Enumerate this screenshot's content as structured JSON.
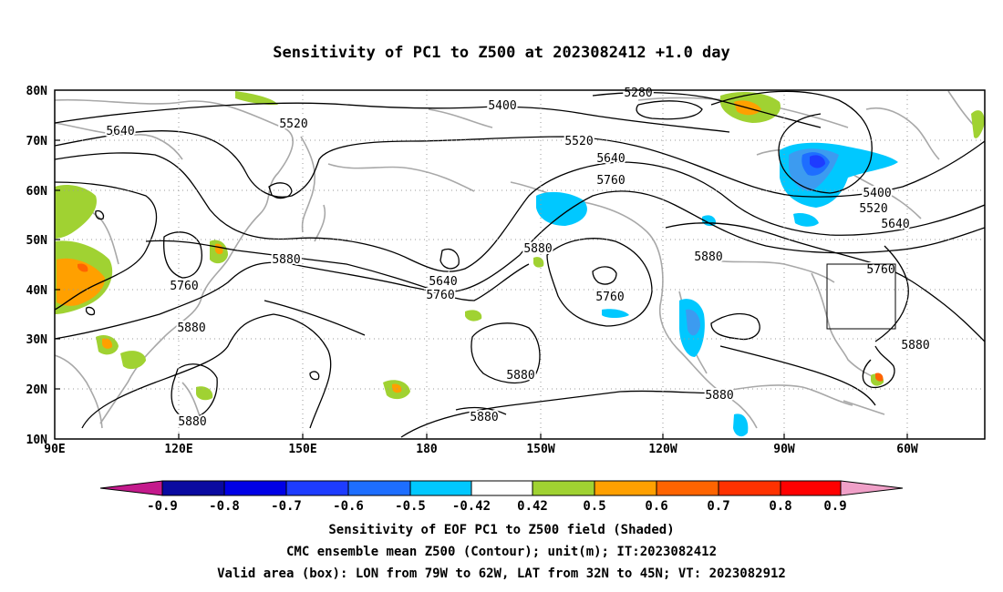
{
  "title": "Sensitivity of PC1 to Z500 at 2023082412 +1.0 day",
  "map": {
    "lat_labels": [
      "80N",
      "70N",
      "60N",
      "50N",
      "40N",
      "30N",
      "20N",
      "10N"
    ],
    "lon_labels": [
      "90E",
      "120E",
      "150E",
      "180",
      "150W",
      "120W",
      "90W",
      "60W"
    ],
    "contour_labels": [
      {
        "text": "5280",
        "id": "c5280"
      },
      {
        "text": "5400",
        "id": "c5400a"
      },
      {
        "text": "5520",
        "id": "c5520a"
      },
      {
        "text": "5640",
        "id": "c5640a"
      },
      {
        "text": "5520",
        "id": "c5520b"
      },
      {
        "text": "5640",
        "id": "c5640b"
      },
      {
        "text": "5760",
        "id": "c5760a"
      },
      {
        "text": "5400",
        "id": "c5400b"
      },
      {
        "text": "5520",
        "id": "c5520c"
      },
      {
        "text": "5640",
        "id": "c5640c"
      },
      {
        "text": "5880",
        "id": "c5880a"
      },
      {
        "text": "5880",
        "id": "c5880b"
      },
      {
        "text": "5760",
        "id": "c5760b"
      },
      {
        "text": "5640",
        "id": "c5640d"
      },
      {
        "text": "5760",
        "id": "c5760c"
      },
      {
        "text": "5760",
        "id": "c5760d"
      },
      {
        "text": "5880",
        "id": "c5880c"
      },
      {
        "text": "5760",
        "id": "c5760e"
      },
      {
        "text": "5880",
        "id": "c5880d"
      },
      {
        "text": "5880",
        "id": "c5880e"
      },
      {
        "text": "5880",
        "id": "c5880f"
      },
      {
        "text": "5880",
        "id": "c5880g"
      },
      {
        "text": "5880",
        "id": "c5880h"
      },
      {
        "text": "5880",
        "id": "c5880i"
      }
    ],
    "valid_box": {
      "lon_from": "79W",
      "lon_to": "62W",
      "lat_from": "32N",
      "lat_to": "45N"
    }
  },
  "colorbar": {
    "labels": [
      "-0.9",
      "-0.8",
      "-0.7",
      "-0.6",
      "-0.5",
      "-0.42",
      "0.42",
      "0.5",
      "0.6",
      "0.7",
      "0.8",
      "0.9"
    ],
    "colors": [
      "#c41a8c",
      "#0a0aa0",
      "#0000e6",
      "#1e3cff",
      "#1e6eff",
      "#3c9bf0",
      "#00c8ff",
      "#ffffff",
      "#a0d232",
      "#ffa000",
      "#ff6400",
      "#ff3200",
      "#ff0000",
      "#f0a0c8"
    ]
  },
  "captions": [
    "Sensitivity of EOF PC1 to Z500 field (Shaded)",
    "CMC ensemble mean Z500 (Contour); unit(m); IT:2023082412",
    "Valid area (box): LON from 79W to 62W, LAT from 32N to 45N; VT: 2023082912"
  ]
}
